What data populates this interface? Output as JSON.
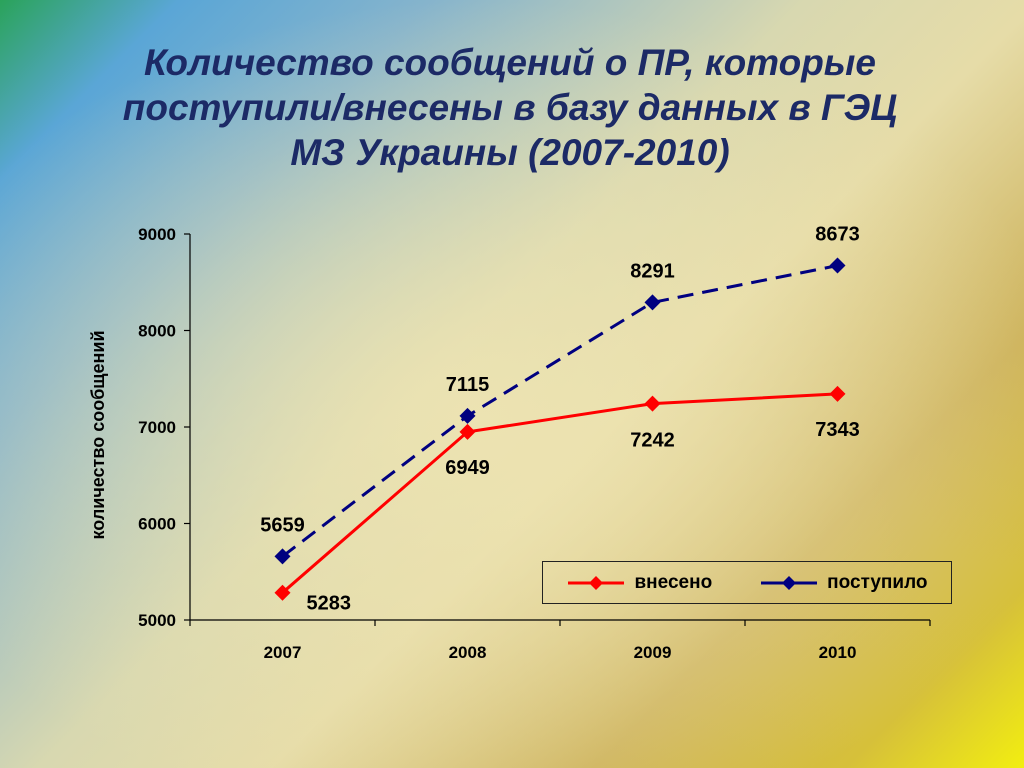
{
  "title_lines": [
    "Количество сообщений о ПР, которые",
    "поступили/внесены в базу данных в ГЭЦ",
    "МЗ Украины (2007-2010)"
  ],
  "chart_data": {
    "type": "line",
    "title": "Количество сообщений о ПР, которые поступили/внесены в базу данных в ГЭЦ МЗ Украины (2007-2010)",
    "xlabel": "",
    "ylabel": "количество сообщений",
    "categories": [
      "2007",
      "2008",
      "2009",
      "2010"
    ],
    "ylim": [
      5000,
      9000
    ],
    "yticks": [
      "5000",
      "6000",
      "7000",
      "8000",
      "9000"
    ],
    "grid": false,
    "legend_position": "bottom-right",
    "series": [
      {
        "name": "внесено",
        "values": [
          5283,
          6949,
          7242,
          7343
        ],
        "color": "#ff0000",
        "dash": "solid"
      },
      {
        "name": "поступило",
        "values": [
          5659,
          7115,
          8291,
          8673
        ],
        "color": "#000080",
        "dash": "dashed"
      }
    ]
  }
}
